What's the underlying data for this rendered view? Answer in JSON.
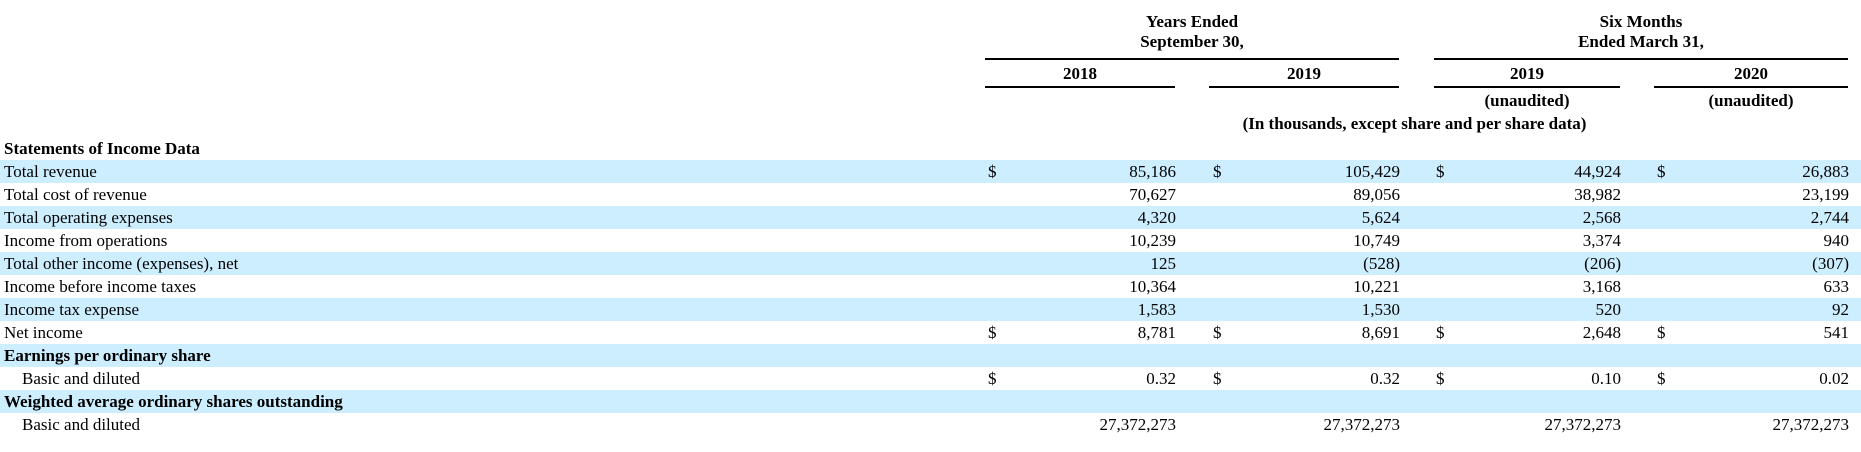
{
  "header": {
    "years_group_line1": "Years Ended",
    "years_group_line2": "September 30,",
    "six_months_line1": "Six Months",
    "six_months_line2": "Ended March 31,",
    "col_2018": "2018",
    "col_2019": "2019",
    "col_2019_six": "2019",
    "col_2020_six": "2020",
    "unaudited_2019": "(unaudited)",
    "unaudited_2020": "(unaudited)",
    "units_note": "(In thousands, except share and per share data)"
  },
  "rows": [
    {
      "label": "Statements of Income Data",
      "bold": true,
      "values": [
        "",
        "",
        "",
        ""
      ],
      "dollars": [
        "",
        "",
        "",
        ""
      ]
    },
    {
      "label": "Total revenue",
      "values": [
        "85,186",
        "105,429",
        "44,924",
        "26,883"
      ],
      "dollars": [
        "$",
        "$",
        "$",
        "$"
      ]
    },
    {
      "label": "Total cost of revenue",
      "values": [
        "70,627",
        "89,056",
        "38,982",
        "23,199"
      ],
      "dollars": [
        "",
        "",
        "",
        ""
      ]
    },
    {
      "label": "Total operating expenses",
      "values": [
        "4,320",
        "5,624",
        "2,568",
        "2,744"
      ],
      "dollars": [
        "",
        "",
        "",
        ""
      ]
    },
    {
      "label": "Income from operations",
      "values": [
        "10,239",
        "10,749",
        "3,374",
        "940"
      ],
      "dollars": [
        "",
        "",
        "",
        ""
      ]
    },
    {
      "label": "Total other income (expenses), net",
      "values": [
        "125",
        "(528)",
        "(206)",
        "(307)"
      ],
      "dollars": [
        "",
        "",
        "",
        ""
      ]
    },
    {
      "label": "Income before income taxes",
      "values": [
        "10,364",
        "10,221",
        "3,168",
        "633"
      ],
      "dollars": [
        "",
        "",
        "",
        ""
      ]
    },
    {
      "label": "Income tax expense",
      "values": [
        "1,583",
        "1,530",
        "520",
        "92"
      ],
      "dollars": [
        "",
        "",
        "",
        ""
      ]
    },
    {
      "label": "Net income",
      "values": [
        "8,781",
        "8,691",
        "2,648",
        "541"
      ],
      "dollars": [
        "$",
        "$",
        "$",
        "$"
      ]
    },
    {
      "label": "Earnings per ordinary share",
      "bold": true,
      "values": [
        "",
        "",
        "",
        ""
      ],
      "dollars": [
        "",
        "",
        "",
        ""
      ]
    },
    {
      "label": "Basic and diluted",
      "indent": true,
      "values": [
        "0.32",
        "0.32",
        "0.10",
        "0.02"
      ],
      "dollars": [
        "$",
        "$",
        "$",
        "$"
      ]
    },
    {
      "label": "Weighted average ordinary shares outstanding",
      "bold": true,
      "values": [
        "",
        "",
        "",
        ""
      ],
      "dollars": [
        "",
        "",
        "",
        ""
      ]
    },
    {
      "label": "Basic and diluted",
      "indent": true,
      "values": [
        "27,372,273",
        "27,372,273",
        "27,372,273",
        "27,372,273"
      ],
      "dollars": [
        "",
        "",
        "",
        ""
      ]
    }
  ]
}
